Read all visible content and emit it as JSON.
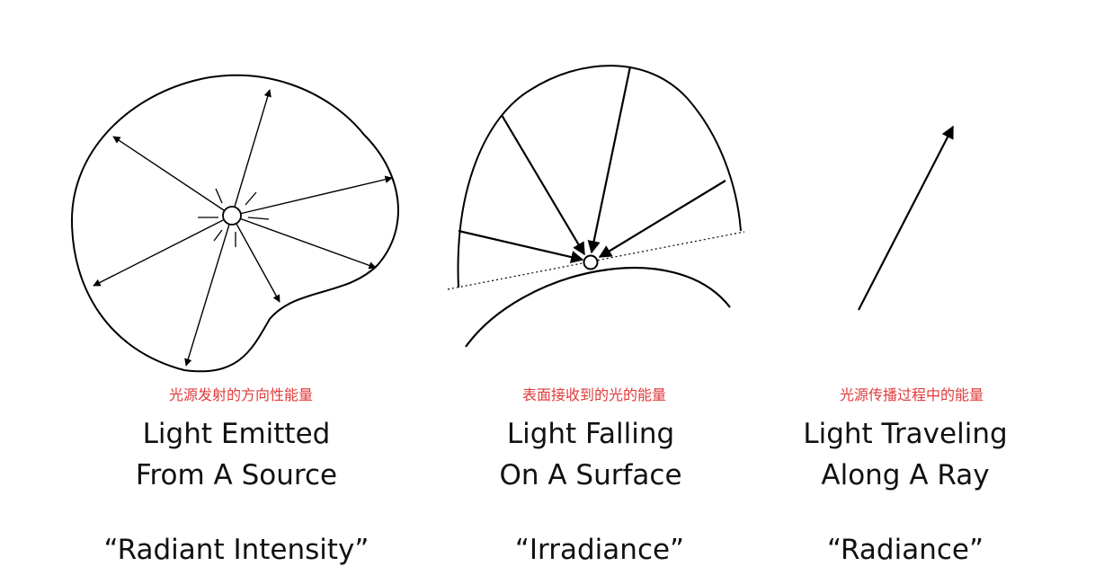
{
  "panels": [
    {
      "caption_cn": "光源发射的方向性能量",
      "line1": "Light Emitted",
      "line2": "From A Source",
      "term": "“Radiant Intensity”",
      "icon": "point-source-emitting-arrows"
    },
    {
      "caption_cn": "表面接收到的光的能量",
      "line1": "Light Falling",
      "line2": "On A Surface",
      "term": "“Irradiance”",
      "icon": "surface-receiving-arrows"
    },
    {
      "caption_cn": "光源传播过程中的能量",
      "line1": "Light Traveling",
      "line2": "Along A Ray",
      "term": "“Radiance”",
      "icon": "single-ray-arrow"
    }
  ],
  "colors": {
    "stroke": "#000000",
    "caption_cn": "#e03a3a",
    "text": "#111111"
  }
}
